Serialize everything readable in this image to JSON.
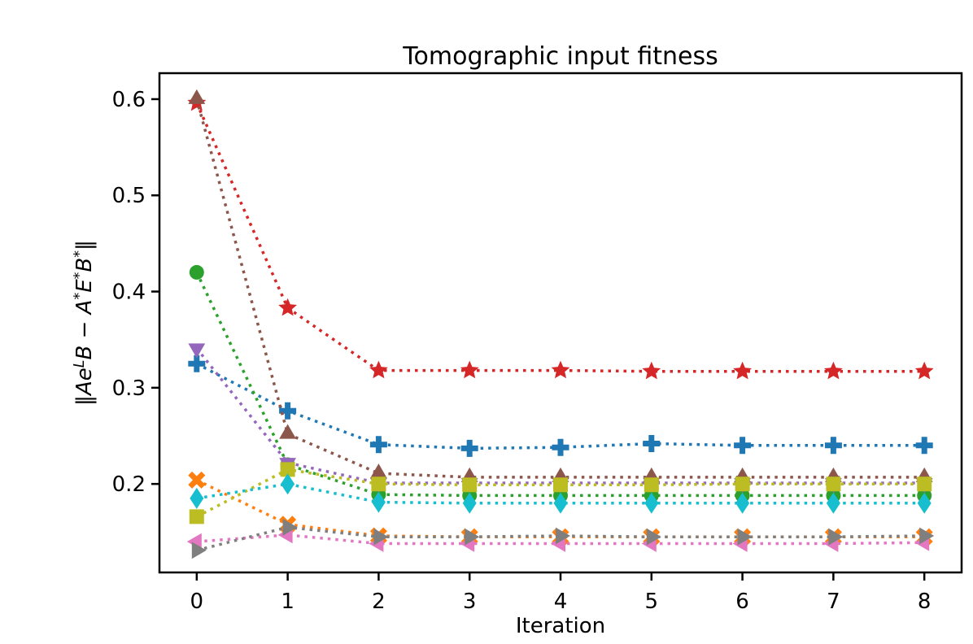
{
  "figure": {
    "background": "#ffffff"
  },
  "chart_data": {
    "type": "line",
    "title": "Tomographic input fitness",
    "xlabel": "Iteration",
    "ylabel_text": "‖Ae^LB − A*E*B*‖",
    "ylabel_segments": [
      {
        "text": "‖",
        "italic": false,
        "sup": false
      },
      {
        "text": "Ae",
        "italic": true,
        "sup": false
      },
      {
        "text": "L",
        "italic": true,
        "sup": true
      },
      {
        "text": "B",
        "italic": true,
        "sup": false
      },
      {
        "text": " − ",
        "italic": false,
        "sup": false
      },
      {
        "text": "A",
        "italic": true,
        "sup": false
      },
      {
        "text": "*",
        "italic": false,
        "sup": true
      },
      {
        "text": "E",
        "italic": true,
        "sup": false
      },
      {
        "text": "*",
        "italic": false,
        "sup": true
      },
      {
        "text": "B",
        "italic": true,
        "sup": false
      },
      {
        "text": "*",
        "italic": false,
        "sup": true
      },
      {
        "text": "‖",
        "italic": false,
        "sup": false
      }
    ],
    "x": [
      0,
      1,
      2,
      3,
      4,
      5,
      6,
      7,
      8
    ],
    "xticks": [
      "0",
      "1",
      "2",
      "3",
      "4",
      "5",
      "6",
      "7",
      "8"
    ],
    "yticks": [
      "0.2",
      "0.3",
      "0.4",
      "0.5",
      "0.6"
    ],
    "ytick_values": [
      0.2,
      0.3,
      0.4,
      0.5,
      0.6
    ],
    "xlim": [
      -0.41,
      8.41
    ],
    "ylim": [
      0.108,
      0.627
    ],
    "grid": false,
    "legend": "none",
    "linestyle": "dotted",
    "series": [
      {
        "name": "blue-plus",
        "color": "#1f77b4",
        "marker": "plus",
        "values": [
          0.325,
          0.276,
          0.241,
          0.237,
          0.238,
          0.242,
          0.24,
          0.24,
          0.24
        ]
      },
      {
        "name": "orange-x",
        "color": "#ff7f0e",
        "marker": "x",
        "values": [
          0.204,
          0.158,
          0.146,
          0.145,
          0.145,
          0.145,
          0.145,
          0.145,
          0.145
        ]
      },
      {
        "name": "green-circle",
        "color": "#2ca02c",
        "marker": "circle",
        "values": [
          0.42,
          0.22,
          0.189,
          0.188,
          0.188,
          0.188,
          0.188,
          0.188,
          0.188
        ]
      },
      {
        "name": "red-star",
        "color": "#d62728",
        "marker": "star",
        "values": [
          0.596,
          0.383,
          0.318,
          0.318,
          0.318,
          0.317,
          0.317,
          0.317,
          0.317
        ]
      },
      {
        "name": "purple-triangle-down",
        "color": "#9467bd",
        "marker": "triangle-down",
        "values": [
          0.341,
          0.222,
          0.201,
          0.201,
          0.201,
          0.201,
          0.201,
          0.201,
          0.201
        ]
      },
      {
        "name": "brown-triangle-up",
        "color": "#8c564b",
        "marker": "triangle-up",
        "values": [
          0.6,
          0.252,
          0.211,
          0.207,
          0.207,
          0.207,
          0.207,
          0.207,
          0.207
        ]
      },
      {
        "name": "pink-triangle-left",
        "color": "#e377c2",
        "marker": "triangle-left",
        "values": [
          0.14,
          0.147,
          0.138,
          0.138,
          0.138,
          0.138,
          0.138,
          0.138,
          0.139
        ]
      },
      {
        "name": "gray-triangle-right",
        "color": "#7f7f7f",
        "marker": "triangle-right",
        "values": [
          0.131,
          0.155,
          0.145,
          0.145,
          0.146,
          0.145,
          0.145,
          0.145,
          0.146
        ]
      },
      {
        "name": "olive-square",
        "color": "#bcbd22",
        "marker": "square",
        "values": [
          0.166,
          0.215,
          0.2,
          0.199,
          0.199,
          0.199,
          0.2,
          0.2,
          0.2
        ]
      },
      {
        "name": "cyan-diamond",
        "color": "#17becf",
        "marker": "diamond",
        "values": [
          0.185,
          0.2,
          0.181,
          0.18,
          0.18,
          0.18,
          0.18,
          0.18,
          0.18
        ]
      }
    ]
  }
}
